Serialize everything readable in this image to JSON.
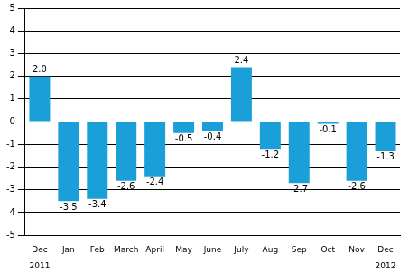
{
  "chart_data": {
    "type": "bar",
    "categories": [
      "Dec",
      "Jan",
      "Feb",
      "March",
      "April",
      "May",
      "June",
      "July",
      "Aug",
      "Sep",
      "Oct",
      "Nov",
      "Dec"
    ],
    "values": [
      2.0,
      -3.5,
      -3.4,
      -2.6,
      -2.4,
      -0.5,
      -0.4,
      2.4,
      -1.2,
      -2.7,
      -0.1,
      -2.6,
      -1.3
    ],
    "value_labels": [
      "2.0",
      "-3.5",
      "-3.4",
      "-2.6",
      "-2.4",
      "-0.5",
      "-0.4",
      "2.4",
      "-1.2",
      "-2.7",
      "-0.1",
      "-2.6",
      "-1.3"
    ],
    "annotations": [
      "2011",
      "2012"
    ],
    "color": "#1a9fd9",
    "ylim": [
      -5,
      5
    ],
    "yticks": [
      -5,
      -4,
      -3,
      -2,
      -1,
      0,
      1,
      2,
      3,
      4,
      5
    ],
    "grid": true,
    "data_labels": true
  }
}
